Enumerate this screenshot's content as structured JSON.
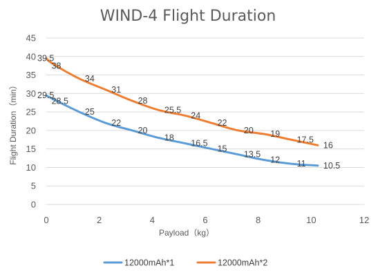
{
  "chart_data": {
    "type": "line",
    "title": "WIND-4 Flight Duration",
    "xlabel": "Payload（kg）",
    "ylabel": "Flight Duration（min）",
    "xlim": [
      0,
      12
    ],
    "ylim": [
      0,
      45
    ],
    "xticks": [
      "0",
      "2",
      "4",
      "6",
      "8",
      "10",
      "12"
    ],
    "yticks": [
      "0",
      "5",
      "10",
      "15",
      "20",
      "25",
      "30",
      "35",
      "40",
      "45"
    ],
    "grid": true,
    "legend": "bottom",
    "series": [
      {
        "name": "12000mAh*1",
        "color": "#5B9BD5",
        "x": [
          0,
          0.25,
          1.25,
          2.25,
          3.25,
          4.25,
          5.25,
          6.25,
          7.25,
          8.25,
          9.25,
          10.25
        ],
        "values": [
          29.5,
          28.5,
          25,
          22,
          20,
          18,
          16.5,
          15,
          13.5,
          12,
          11,
          10.5
        ],
        "labels": [
          "29.5",
          "28.5",
          "25",
          "22",
          "20",
          "18",
          "16.5",
          "15",
          "13.5",
          "12",
          "11",
          "10.5"
        ]
      },
      {
        "name": "12000mAh*2",
        "color": "#ED7D31",
        "x": [
          0,
          0.25,
          1.25,
          2.25,
          3.25,
          4.25,
          5.25,
          6.25,
          7.25,
          8.25,
          9.25,
          10.25
        ],
        "values": [
          39.5,
          38,
          34,
          31,
          28,
          25.5,
          24,
          22,
          20,
          19,
          17.5,
          16
        ],
        "labels": [
          "39.5",
          "38",
          "34",
          "31",
          "28",
          "25.5",
          "24",
          "22",
          "20",
          "19",
          "17.5",
          "16"
        ]
      }
    ]
  }
}
